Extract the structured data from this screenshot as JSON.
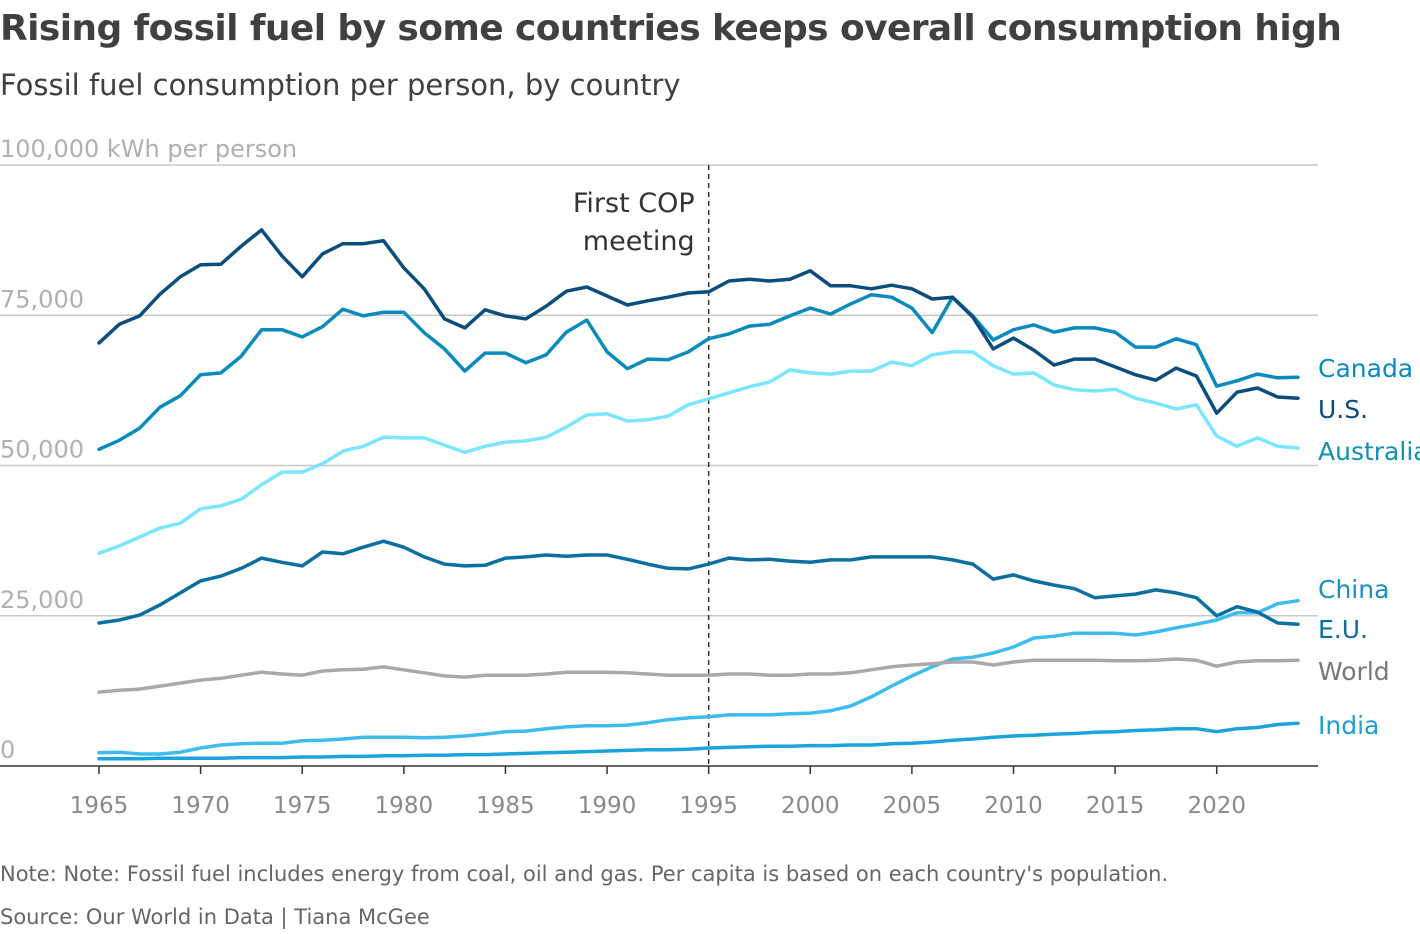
{
  "title": "Rising fossil fuel by some countries keeps overall consumption high",
  "subtitle": "Fossil fuel consumption per person, by country",
  "note": "Note: Note: Fossil fuel includes energy from coal, oil and gas. Per capita is based on each country's population.",
  "source": "Source: Our World in Data | Tiana McGee",
  "chart_data": {
    "type": "line",
    "title": "Rising fossil fuel by some countries keeps overall consumption high",
    "subtitle": "Fossil fuel consumption per person, by country",
    "ylabel": "kWh per person",
    "ylim": [
      0,
      100000
    ],
    "xlim": [
      1965,
      2024
    ],
    "yticks": [
      {
        "value": 100000,
        "label": "100,000 kWh per person"
      },
      {
        "value": 75000,
        "label": "75,000"
      },
      {
        "value": 50000,
        "label": "50,000"
      },
      {
        "value": 25000,
        "label": "25,000"
      },
      {
        "value": 0,
        "label": "0"
      }
    ],
    "xticks": [
      1965,
      1970,
      1975,
      1980,
      1985,
      1990,
      1995,
      2000,
      2005,
      2010,
      2015,
      2020
    ],
    "xtick_labels": [
      "1965",
      "1970",
      "1975",
      "1980",
      "1985",
      "1990",
      "1995",
      "2000",
      "2005",
      "2010",
      "2015",
      "2020"
    ],
    "grid": "horizontal",
    "legend": "direct labels at right",
    "annotation": {
      "x": 1995,
      "lines": [
        "First COP",
        "meeting"
      ]
    },
    "x_start": 1965,
    "series": [
      {
        "name": "Canada",
        "color": "#0a8bbd",
        "label_color": "#0a8bbd",
        "values": [
          52700,
          54200,
          56200,
          59700,
          61600,
          65100,
          65400,
          68200,
          72600,
          72600,
          71400,
          73100,
          76000,
          74900,
          75500,
          75500,
          72100,
          69400,
          65700,
          68700,
          68700,
          67100,
          68400,
          72200,
          74200,
          68900,
          66100,
          67700,
          67600,
          68900,
          71100,
          71900,
          73200,
          73500,
          74900,
          76200,
          75200,
          76900,
          78400,
          78000,
          76200,
          72100,
          78000,
          74900,
          70900,
          72600,
          73400,
          72200,
          72900,
          72900,
          72200,
          69700,
          69700,
          71100,
          70100,
          63200,
          64100,
          65200,
          64600,
          64700
        ]
      },
      {
        "name": "U.S.",
        "color": "#0b4d7d",
        "label_color": "#0b4a78",
        "values": [
          70400,
          73500,
          74900,
          78500,
          81400,
          83400,
          83500,
          86500,
          89200,
          84900,
          81400,
          85200,
          86900,
          86900,
          87400,
          82900,
          79400,
          74400,
          72900,
          75900,
          74900,
          74400,
          76500,
          79000,
          79700,
          78200,
          76700,
          77400,
          78000,
          78700,
          78900,
          80700,
          81000,
          80700,
          81000,
          82400,
          79900,
          79900,
          79400,
          80000,
          79400,
          77700,
          78000,
          74700,
          69400,
          71200,
          69200,
          66700,
          67700,
          67700,
          66400,
          65100,
          64200,
          66200,
          64900,
          58700,
          62200,
          62900,
          61400,
          61200
        ]
      },
      {
        "name": "Australia",
        "color": "#7ae6ff",
        "label_color": "#1290b0",
        "values": [
          35400,
          36600,
          38100,
          39600,
          40400,
          42800,
          43300,
          44400,
          46800,
          48900,
          48900,
          50300,
          52400,
          53200,
          54700,
          54600,
          54600,
          53400,
          52200,
          53200,
          53900,
          54100,
          54700,
          56400,
          58400,
          58600,
          57400,
          57600,
          58200,
          60100,
          61100,
          62100,
          63100,
          63900,
          65900,
          65400,
          65200,
          65700,
          65700,
          67200,
          66600,
          68400,
          68900,
          68900,
          66600,
          65200,
          65400,
          63400,
          62600,
          62400,
          62700,
          61200,
          60400,
          59400,
          60100,
          54900,
          53200,
          54600,
          53200,
          52900
        ]
      },
      {
        "name": "China",
        "color": "#3dbcf0",
        "label_color": "#1a8fc5",
        "values": [
          2200,
          2300,
          2000,
          2000,
          2300,
          3000,
          3500,
          3700,
          3800,
          3800,
          4200,
          4300,
          4500,
          4800,
          4800,
          4800,
          4700,
          4800,
          5000,
          5300,
          5700,
          5800,
          6200,
          6500,
          6700,
          6700,
          6800,
          7200,
          7700,
          8000,
          8200,
          8500,
          8500,
          8500,
          8700,
          8800,
          9200,
          10000,
          11500,
          13300,
          15000,
          16500,
          17800,
          18100,
          18800,
          19800,
          21300,
          21600,
          22100,
          22100,
          22100,
          21800,
          22300,
          23000,
          23600,
          24300,
          25500,
          25500,
          27000,
          27500
        ]
      },
      {
        "name": "E.U.",
        "color": "#0b6fa0",
        "label_color": "#0b6fa0",
        "values": [
          23800,
          24300,
          25100,
          26800,
          28800,
          30800,
          31600,
          32900,
          34600,
          33900,
          33300,
          35600,
          35300,
          36400,
          37400,
          36400,
          34800,
          33600,
          33300,
          33400,
          34600,
          34800,
          35100,
          34900,
          35100,
          35100,
          34400,
          33600,
          32900,
          32800,
          33600,
          34600,
          34300,
          34400,
          34100,
          33900,
          34300,
          34300,
          34800,
          34800,
          34800,
          34800,
          34300,
          33600,
          31100,
          31800,
          30800,
          30100,
          29500,
          28000,
          28300,
          28600,
          29300,
          28800,
          28000,
          25000,
          26500,
          25600,
          23800,
          23600
        ]
      },
      {
        "name": "World",
        "color": "#a9a9a9",
        "label_color": "#777777",
        "values": [
          12300,
          12600,
          12800,
          13300,
          13800,
          14300,
          14600,
          15100,
          15600,
          15300,
          15100,
          15800,
          16000,
          16100,
          16500,
          16000,
          15500,
          15000,
          14800,
          15100,
          15100,
          15100,
          15300,
          15600,
          15600,
          15600,
          15500,
          15300,
          15100,
          15100,
          15100,
          15300,
          15300,
          15100,
          15100,
          15300,
          15300,
          15500,
          16000,
          16500,
          16800,
          17000,
          17300,
          17300,
          16800,
          17300,
          17600,
          17600,
          17600,
          17600,
          17500,
          17500,
          17600,
          17800,
          17600,
          16600,
          17300,
          17500,
          17500,
          17600
        ]
      },
      {
        "name": "India",
        "color": "#1aa3dc",
        "label_color": "#1a9fd8",
        "values": [
          1200,
          1200,
          1200,
          1300,
          1300,
          1300,
          1300,
          1400,
          1400,
          1400,
          1500,
          1500,
          1600,
          1600,
          1700,
          1700,
          1800,
          1800,
          1900,
          1900,
          2000,
          2100,
          2200,
          2300,
          2400,
          2500,
          2600,
          2700,
          2700,
          2800,
          3000,
          3100,
          3200,
          3300,
          3300,
          3400,
          3400,
          3500,
          3500,
          3700,
          3800,
          4000,
          4300,
          4500,
          4800,
          5000,
          5100,
          5300,
          5400,
          5600,
          5700,
          5900,
          6000,
          6200,
          6200,
          5700,
          6200,
          6400,
          6900,
          7100
        ]
      }
    ]
  }
}
